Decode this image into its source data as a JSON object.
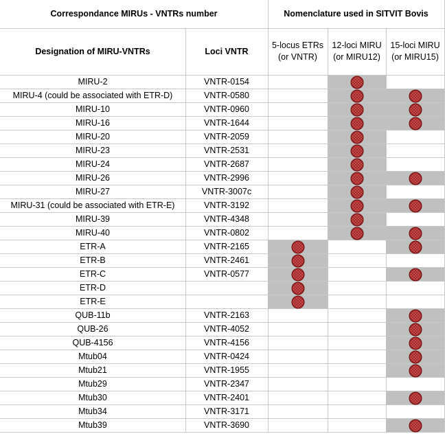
{
  "header": {
    "left_title": "Correspondance MIRUs - VNTRs number",
    "right_title": "Nomenclature used in SITVIT Bovis",
    "columns": [
      "Designation of MIRU-VNTRs",
      "Loci VNTR"
    ],
    "systems": [
      [
        "5-locus ETRs",
        "(or VNTR)"
      ],
      [
        "12-loci MIRU",
        "(or MIRU12)"
      ],
      [
        "15-loci MIRU",
        "(or MIRU15)"
      ]
    ]
  },
  "table": {
    "rows": [
      {
        "designation": "MIRU-2",
        "locus": "VNTR-0154",
        "used": [
          false,
          true,
          false
        ]
      },
      {
        "designation": "MIRU-4 (could be associated with ETR-D)",
        "locus": "VNTR-0580",
        "used": [
          false,
          true,
          true
        ]
      },
      {
        "designation": "MIRU-10",
        "locus": "VNTR-0960",
        "used": [
          false,
          true,
          true
        ]
      },
      {
        "designation": "MIRU-16",
        "locus": "VNTR-1644",
        "used": [
          false,
          true,
          true
        ]
      },
      {
        "designation": "MIRU-20",
        "locus": "VNTR-2059",
        "used": [
          false,
          true,
          false
        ]
      },
      {
        "designation": "MIRU-23",
        "locus": "VNTR-2531",
        "used": [
          false,
          true,
          false
        ]
      },
      {
        "designation": "MIRU-24",
        "locus": "VNTR-2687",
        "used": [
          false,
          true,
          false
        ]
      },
      {
        "designation": "MIRU-26",
        "locus": "VNTR-2996",
        "used": [
          false,
          true,
          true
        ]
      },
      {
        "designation": "MIRU-27",
        "locus": "VNTR-3007c",
        "used": [
          false,
          true,
          false
        ]
      },
      {
        "designation": "MIRU-31 (could be associated with ETR-E)",
        "locus": "VNTR-3192",
        "used": [
          false,
          true,
          true
        ]
      },
      {
        "designation": "MIRU-39",
        "locus": "VNTR-4348",
        "used": [
          false,
          true,
          false
        ]
      },
      {
        "designation": "MIRU-40",
        "locus": "VNTR-0802",
        "used": [
          false,
          true,
          true
        ]
      },
      {
        "designation": "ETR-A",
        "locus": "VNTR-2165",
        "used": [
          true,
          false,
          true
        ]
      },
      {
        "designation": "ETR-B",
        "locus": "VNTR-2461",
        "used": [
          true,
          false,
          false
        ]
      },
      {
        "designation": "ETR-C",
        "locus": "VNTR-0577",
        "used": [
          true,
          false,
          true
        ]
      },
      {
        "designation": "ETR-D",
        "locus": null,
        "used": [
          true,
          false,
          false
        ]
      },
      {
        "designation": "ETR-E",
        "locus": null,
        "used": [
          true,
          false,
          false
        ]
      },
      {
        "designation": "QUB-11b",
        "locus": "VNTR-2163",
        "used": [
          false,
          false,
          true
        ]
      },
      {
        "designation": "QUB-26",
        "locus": "VNTR-4052",
        "used": [
          false,
          false,
          true
        ]
      },
      {
        "designation": "QUB-4156",
        "locus": "VNTR-4156",
        "used": [
          false,
          false,
          true
        ]
      },
      {
        "designation": "Mtub04",
        "locus": "VNTR-0424",
        "used": [
          false,
          false,
          true
        ]
      },
      {
        "designation": "Mtub21",
        "locus": "VNTR-1955",
        "used": [
          false,
          false,
          true
        ]
      },
      {
        "designation": "Mtub29",
        "locus": "VNTR-2347",
        "used": [
          false,
          false,
          false
        ]
      },
      {
        "designation": "Mtub30",
        "locus": "VNTR-2401",
        "used": [
          false,
          false,
          true
        ]
      },
      {
        "designation": "Mtub34",
        "locus": "VNTR-3171",
        "used": [
          false,
          false,
          false
        ]
      },
      {
        "designation": "Mtub39",
        "locus": "VNTR-3690",
        "used": [
          false,
          false,
          true
        ]
      }
    ]
  }
}
